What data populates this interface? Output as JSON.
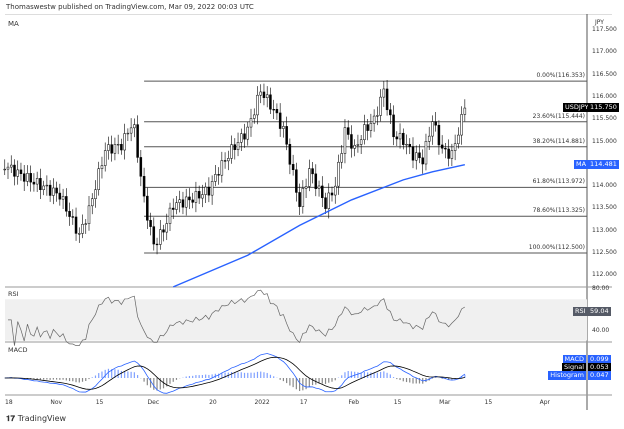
{
  "header": {
    "published": "Thomaswestw published on TradingView.com, Mar 09, 2022 00:03 UTC",
    "indicator": "MA"
  },
  "colors": {
    "ma": "#2962ff",
    "macd": "#2962ff",
    "signal": "#000000",
    "histogram": "#2962ff",
    "fib": "#555555",
    "tag_dark": "#000000",
    "rsi_tag": "#555a66"
  },
  "chart_data": {
    "type": "candlestick",
    "symbol": "USDJPY",
    "currency": "JPY",
    "ylim": [
      111.8,
      117.7
    ],
    "yticks": [
      "117.500",
      "117.000",
      "116.500",
      "116.000",
      "115.500",
      "115.000",
      "114.000",
      "113.500",
      "113.000",
      "112.500",
      "112.000"
    ],
    "last_price": "115.750",
    "ma_value": "114.481",
    "ma_label": "MA",
    "xticks": [
      {
        "date": "2021-10-18",
        "label": "18"
      },
      {
        "date": "2021-11-01",
        "label": "Nov"
      },
      {
        "date": "2021-11-15",
        "label": "15"
      },
      {
        "date": "2021-12-01",
        "label": "Dec"
      },
      {
        "date": "2021-12-20",
        "label": "20"
      },
      {
        "date": "2022-01-03",
        "label": "2022"
      },
      {
        "date": "2022-01-17",
        "label": "17"
      },
      {
        "date": "2022-02-01",
        "label": "Feb"
      },
      {
        "date": "2022-02-15",
        "label": "15"
      },
      {
        "date": "2022-03-01",
        "label": "Mar"
      },
      {
        "date": "2022-03-15",
        "label": "15"
      },
      {
        "date": "2022-04-01",
        "label": "Apr"
      }
    ],
    "price_path": [
      [
        "2021-10-17",
        114.47
      ],
      [
        "2021-10-22",
        114.25
      ],
      [
        "2021-10-28",
        114.02
      ],
      [
        "2021-11-03",
        113.8
      ],
      [
        "2021-11-09",
        112.9
      ],
      [
        "2021-11-12",
        113.46
      ],
      [
        "2021-11-17",
        114.81
      ],
      [
        "2021-11-22",
        114.92
      ],
      [
        "2021-11-25",
        115.37
      ],
      [
        "2021-11-26",
        115.26
      ],
      [
        "2021-11-29",
        113.69
      ],
      [
        "2021-12-02",
        112.68
      ],
      [
        "2021-12-05",
        113.02
      ],
      [
        "2021-12-08",
        113.58
      ],
      [
        "2021-12-13",
        113.69
      ],
      [
        "2021-12-19",
        113.91
      ],
      [
        "2021-12-22",
        114.36
      ],
      [
        "2021-12-26",
        114.81
      ],
      [
        "2021-12-31",
        115.26
      ],
      [
        "2022-01-04",
        116.15
      ],
      [
        "2022-01-08",
        115.71
      ],
      [
        "2022-01-11",
        115.26
      ],
      [
        "2022-01-14",
        114.25
      ],
      [
        "2022-01-16",
        113.58
      ],
      [
        "2022-01-19",
        114.36
      ],
      [
        "2022-01-22",
        113.91
      ],
      [
        "2022-01-24",
        113.58
      ],
      [
        "2022-01-27",
        114.02
      ],
      [
        "2022-01-30",
        115.26
      ],
      [
        "2022-02-02",
        114.81
      ],
      [
        "2022-02-05",
        115.26
      ],
      [
        "2022-02-08",
        115.48
      ],
      [
        "2022-02-11",
        116.15
      ],
      [
        "2022-02-14",
        115.15
      ],
      [
        "2022-02-17",
        115.03
      ],
      [
        "2022-02-20",
        114.7
      ],
      [
        "2022-02-23",
        114.59
      ],
      [
        "2022-02-26",
        115.48
      ],
      [
        "2022-03-01",
        114.81
      ],
      [
        "2022-03-04",
        114.7
      ],
      [
        "2022-03-08",
        115.75
      ]
    ],
    "ma_path": [
      [
        "2021-12-08",
        111.74
      ],
      [
        "2021-12-31",
        112.45
      ],
      [
        "2022-01-16",
        113.12
      ],
      [
        "2022-02-01",
        113.69
      ],
      [
        "2022-02-17",
        114.14
      ],
      [
        "2022-02-26",
        114.32
      ],
      [
        "2022-03-08",
        114.48
      ]
    ],
    "fib_start": "2021-11-29",
    "fib_levels": [
      {
        "label": "0.00%(116.353)",
        "price": 116.353
      },
      {
        "label": "23.60%(115.444)",
        "price": 115.444
      },
      {
        "label": "38.20%(114.881)",
        "price": 114.881
      },
      {
        "label": "61.80%(113.972)",
        "price": 113.972
      },
      {
        "label": "78.60%(113.325)",
        "price": 113.325
      },
      {
        "label": "100.00%(112.500)",
        "price": 112.5
      }
    ],
    "rsi": {
      "label": "RSI",
      "value": "59.04",
      "ticks": [
        "80.00",
        "40.00"
      ]
    },
    "macd": {
      "macd_label": "MACD",
      "macd_value": "0.099",
      "signal_label": "Signal",
      "signal_value": "0.053",
      "hist_label": "Histogram",
      "hist_value": "0.047"
    }
  },
  "footer": {
    "brand": "TradingView"
  }
}
